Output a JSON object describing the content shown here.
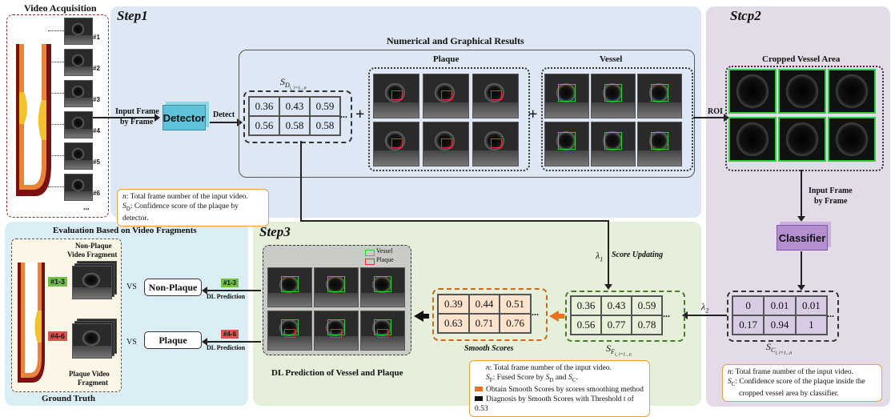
{
  "video_acquisition": {
    "title": "Video Acquisition",
    "frame_labels": [
      "#1",
      "#2",
      "#3",
      "#4",
      "#5",
      "#6"
    ],
    "ellipsis": "..."
  },
  "step1": {
    "title": "Step1",
    "input_label_1": "Input Frame",
    "input_label_2": "by Frame",
    "detector": "Detector",
    "detect": "Detect",
    "results_title": "Numerical and Graphical Results",
    "plaque_label": "Plaque",
    "vessel_label": "Vessel",
    "score_label": "S",
    "score_sub": "D",
    "score_subsub": "i, i=1...n",
    "scores": [
      "0.36",
      "0.43",
      "0.59",
      "0.56",
      "0.58",
      "0.58"
    ],
    "plus": "+",
    "dots": "...",
    "note_line1_var": "n",
    "note_line1": ": Total frame number of the input video.",
    "note_line2_var": "S",
    "note_line2_sub": "D",
    "note_line2": ": Confidence score of the plaque by detector."
  },
  "step2": {
    "title": "Stcp2",
    "roi": "ROI",
    "cropped_title": "Cropped Vessel Area",
    "input_label_1": "Input Frame",
    "input_label_2": "by Frame",
    "classifier": "Classifier",
    "scores": [
      "0",
      "0.01",
      "0.01",
      "0.17",
      "0.94",
      "1"
    ],
    "score_label": "S",
    "score_sub": "C",
    "score_subsub": "i, i=1...n",
    "lambda2": "λ",
    "lambda2_sub": "2",
    "note_line1_var": "n",
    "note_line1": ": Total frame number of the input video.",
    "note_line2_var": "S",
    "note_line2_sub": "C",
    "note_line2": ": Confidence score of the plaque inside the",
    "note_line3": "cropped vessel area by classifier."
  },
  "step3": {
    "title": "Step3",
    "lambda1": "λ",
    "lambda1_sub": "1",
    "score_updating": "Score Updating",
    "fused_scores": [
      "0.36",
      "0.43",
      "0.59",
      "0.56",
      "0.77",
      "0.78"
    ],
    "fused_label": "S",
    "fused_sub": "F",
    "fused_subsub": "i, i=1...n",
    "smooth_scores": [
      "0.39",
      "0.44",
      "0.51",
      "0.63",
      "0.71",
      "0.76"
    ],
    "smooth_label": "Smooth Scores",
    "legend_vessel": "Vessel",
    "legend_plaque": "Plaque",
    "dl_title": "DL Prediction of Vessel and Plaque",
    "note_line1_var": "n",
    "note_line1": ": Total frame number of the input video.",
    "note_line2_var": "S",
    "note_line2_sub": "F",
    "note_line2_a": ": Fused Score by ",
    "note_line2_b": " and ",
    "note_line2_end": ".",
    "note_line3": "Obtain Smooth Scores by scores smoothing method",
    "note_line4": "Diagnosis by Smooth Scores with Threshold t of 0.53"
  },
  "evaluation": {
    "title": "Evaluation Based on Video Fragments",
    "nonplaque_fragment_1": "Non-Plaque",
    "nonplaque_fragment_2": "Video Fragment",
    "plaque_fragment_1": "Plaque Video",
    "plaque_fragment_2": "Fragment",
    "tag1": "#1-3",
    "tag2": "#4-6",
    "vs": "VS",
    "pred_nonplaque": "Non-Plaque",
    "pred_plaque": "Plaque",
    "dl_prediction": "DL Prediction",
    "ground_truth": "Ground Truth"
  },
  "colors": {
    "step1_bg": "#dde8f4",
    "step2_bg": "#e3dbe7",
    "step3_bg": "#e6efd9",
    "eval_bg": "#dbedf5",
    "detector": "#5ec3d8",
    "classifier": "#b48fd0",
    "smooth_fill": "#fde3cc",
    "fused_fill": "#e9f0da",
    "class_fill": "#d8cbe4",
    "det_fill": "#dae7f2",
    "orange_arrow": "#e6731f",
    "tag_green": "#6fbf4a",
    "tag_red": "#d9534f"
  }
}
